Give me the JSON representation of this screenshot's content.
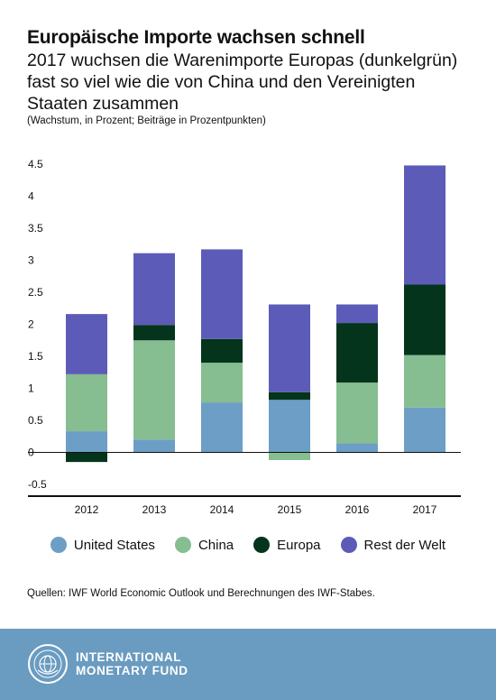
{
  "header": {
    "title": "Europäische Importe wachsen schnell",
    "subtitle": "2017 wuchsen die Warenimporte Europas (dunkelgrün) fast so viel wie die von China und den Vereinigten Staaten zusammen",
    "note": "(Wachstum, in Prozent; Beiträge in Prozentpunkten)"
  },
  "chart_data": {
    "type": "bar",
    "stacked": true,
    "categories": [
      "2012",
      "2013",
      "2014",
      "2015",
      "2016",
      "2017"
    ],
    "ylim": [
      -0.5,
      4.5
    ],
    "yticks": [
      "4.5",
      "4",
      "3.5",
      "3",
      "2.5",
      "2",
      "1.5",
      "1",
      "0.5",
      "0",
      "-0.5"
    ],
    "grid": false,
    "legend_position": "bottom",
    "series": [
      {
        "name": "United States",
        "color": "#6d9ec6",
        "values": [
          0.33,
          0.2,
          0.78,
          0.82,
          0.14,
          0.7
        ]
      },
      {
        "name": "China",
        "color": "#86bd91",
        "values": [
          0.89,
          1.55,
          0.62,
          -0.12,
          0.95,
          0.82
        ]
      },
      {
        "name": "Europa",
        "color": "#04341b",
        "values": [
          -0.15,
          0.24,
          0.37,
          0.12,
          0.93,
          1.1
        ]
      },
      {
        "name": "Rest der Welt",
        "color": "#5c5cb8",
        "values": [
          0.94,
          1.12,
          1.4,
          1.37,
          0.29,
          1.86
        ]
      }
    ]
  },
  "legend": {
    "items": [
      {
        "label": "United States",
        "color": "#6d9ec6"
      },
      {
        "label": "China",
        "color": "#86bd91"
      },
      {
        "label": "Europa",
        "color": "#04341b"
      },
      {
        "label": "Rest der Welt",
        "color": "#5c5cb8"
      }
    ]
  },
  "source": "Quellen: IWF World Economic Outlook und Berechnungen des IWF-Stabes.",
  "footer": {
    "logo_line1": "INTERNATIONAL",
    "logo_line2": "MONETARY FUND",
    "background": "#6a9bc0"
  }
}
